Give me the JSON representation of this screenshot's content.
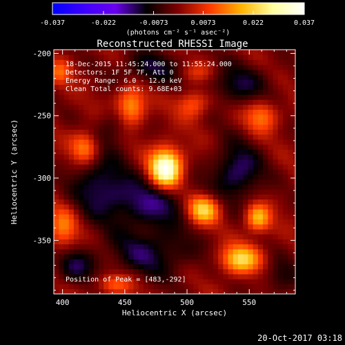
{
  "chart_data": {
    "type": "heatmap",
    "title": "Reconstructed RHESSI Image",
    "xlabel": "Heliocentric X (arcsec)",
    "ylabel": "Heliocentric Y (arcsec)",
    "xlim": [
      393,
      587
    ],
    "ylim": [
      -393,
      -197
    ],
    "x_ticks": [
      400,
      450,
      500,
      550
    ],
    "y_ticks": [
      -200,
      -250,
      -300,
      -350
    ],
    "colorbar": {
      "min": -0.037,
      "max": 0.037,
      "ticks": [
        -0.037,
        -0.022,
        -0.0073,
        0.0073,
        0.022,
        0.037
      ],
      "tick_labels": [
        "-0.037",
        "-0.022",
        "-0.0073",
        "0.0073",
        "0.022",
        "0.037"
      ],
      "unit_label": "(photons cm⁻² s⁻¹ asec⁻²)",
      "colormap": [
        "#0000ff",
        "#3d00ff",
        "#6a00ee",
        "#000000",
        "#800000",
        "#ff3a00",
        "#ffb300",
        "#ffffa0",
        "#ffffff"
      ]
    },
    "annotations": [
      "18-Dec-2015 11:45:24.000 to 11:55:24.000",
      "Detectors: 1F 5F 7F, Att 0",
      "Energy Range: 6.0 - 12.0 keV",
      "Clean    Total counts: 9.68E+03"
    ],
    "peak_label": "Position of Peak = [483,-292]",
    "peak": {
      "x": 483,
      "y": -292
    },
    "sources": [
      {
        "x": 483,
        "y": -292,
        "sx": 9,
        "sy": 11,
        "amp": 0.037
      },
      {
        "x": 513,
        "y": -325,
        "sx": 9,
        "sy": 8,
        "amp": 0.024
      },
      {
        "x": 543,
        "y": -365,
        "sx": 11,
        "sy": 8,
        "amp": 0.023
      },
      {
        "x": 557,
        "y": -332,
        "sx": 7,
        "sy": 8,
        "amp": 0.02
      },
      {
        "x": 455,
        "y": -242,
        "sx": 8,
        "sy": 11,
        "amp": 0.018
      },
      {
        "x": 418,
        "y": -275,
        "sx": 8,
        "sy": 9,
        "amp": 0.016
      },
      {
        "x": 505,
        "y": -240,
        "sx": 9,
        "sy": 8,
        "amp": 0.013
      },
      {
        "x": 560,
        "y": -250,
        "sx": 9,
        "sy": 9,
        "amp": 0.014
      },
      {
        "x": 400,
        "y": -340,
        "sx": 8,
        "sy": 12,
        "amp": 0.014
      },
      {
        "x": 442,
        "y": -385,
        "sx": 10,
        "sy": 6,
        "amp": 0.012
      },
      {
        "x": 398,
        "y": -215,
        "sx": 7,
        "sy": 7,
        "amp": 0.011
      },
      {
        "x": 510,
        "y": -215,
        "sx": 10,
        "sy": 6,
        "amp": 0.008
      },
      {
        "x": 470,
        "y": -320,
        "sx": 22,
        "sy": 14,
        "amp": -0.013
      },
      {
        "x": 430,
        "y": -305,
        "sx": 16,
        "sy": 18,
        "amp": -0.012
      },
      {
        "x": 540,
        "y": -225,
        "sx": 20,
        "sy": 12,
        "amp": -0.01
      },
      {
        "x": 470,
        "y": -360,
        "sx": 25,
        "sy": 14,
        "amp": -0.011
      },
      {
        "x": 540,
        "y": -295,
        "sx": 14,
        "sy": 16,
        "amp": -0.014
      },
      {
        "x": 410,
        "y": -370,
        "sx": 12,
        "sy": 10,
        "amp": -0.01
      },
      {
        "x": 575,
        "y": -380,
        "sx": 10,
        "sy": 10,
        "amp": -0.008
      },
      {
        "x": 470,
        "y": -212,
        "sx": 18,
        "sy": 10,
        "amp": -0.01
      },
      {
        "x": 440,
        "y": -260,
        "sx": 10,
        "sy": 10,
        "amp": -0.007
      }
    ]
  },
  "timestamp": "20-Oct-2017 03:18"
}
